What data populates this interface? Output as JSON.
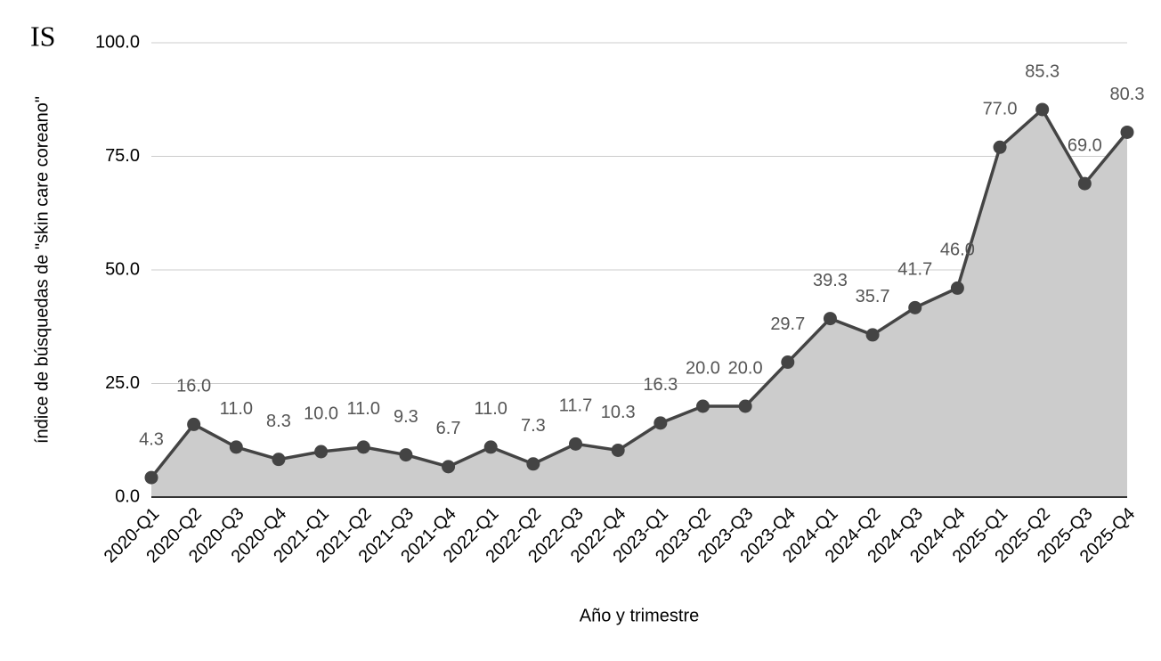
{
  "chart_data": {
    "type": "area-line",
    "logo": "IS",
    "x_label": "Año y trimestre",
    "y_label": "índice de búsquedas de \"skin care coreano\"",
    "categories": [
      "2020-Q1",
      "2020-Q2",
      "2020-Q3",
      "2020-Q4",
      "2021-Q1",
      "2021-Q2",
      "2021-Q3",
      "2021-Q4",
      "2022-Q1",
      "2022-Q2",
      "2022-Q3",
      "2022-Q4",
      "2023-Q1",
      "2023-Q2",
      "2023-Q3",
      "2023-Q4",
      "2024-Q1",
      "2024-Q2",
      "2024-Q3",
      "2024-Q4",
      "2025-Q1",
      "2025-Q2",
      "2025-Q3",
      "2025-Q4"
    ],
    "values": [
      4.3,
      16.0,
      11.0,
      8.3,
      10.0,
      11.0,
      9.3,
      6.7,
      11.0,
      7.3,
      11.7,
      10.3,
      16.3,
      20.0,
      20.0,
      29.7,
      39.3,
      35.7,
      41.7,
      46.0,
      77.0,
      85.3,
      69.0,
      80.3
    ],
    "value_labels": [
      "4.3",
      "16.0",
      "11.0",
      "8.3",
      "10.0",
      "11.0",
      "9.3",
      "6.7",
      "11.0",
      "7.3",
      "11.7",
      "10.3",
      "16.3",
      "20.0",
      "20.0",
      "29.7",
      "39.3",
      "35.7",
      "41.7",
      "46.0",
      "77.0",
      "85.3",
      "69.0",
      "80.3"
    ],
    "color": "#444444",
    "fill_color": "#cccccc",
    "ylim": [
      0,
      100
    ],
    "yticks": [
      {
        "value": 0,
        "label": "0.0"
      },
      {
        "value": 25,
        "label": "25.0"
      },
      {
        "value": 50,
        "label": "50.0"
      },
      {
        "value": 75,
        "label": "75.0"
      },
      {
        "value": 100,
        "label": "100.0"
      }
    ],
    "grid": true
  }
}
